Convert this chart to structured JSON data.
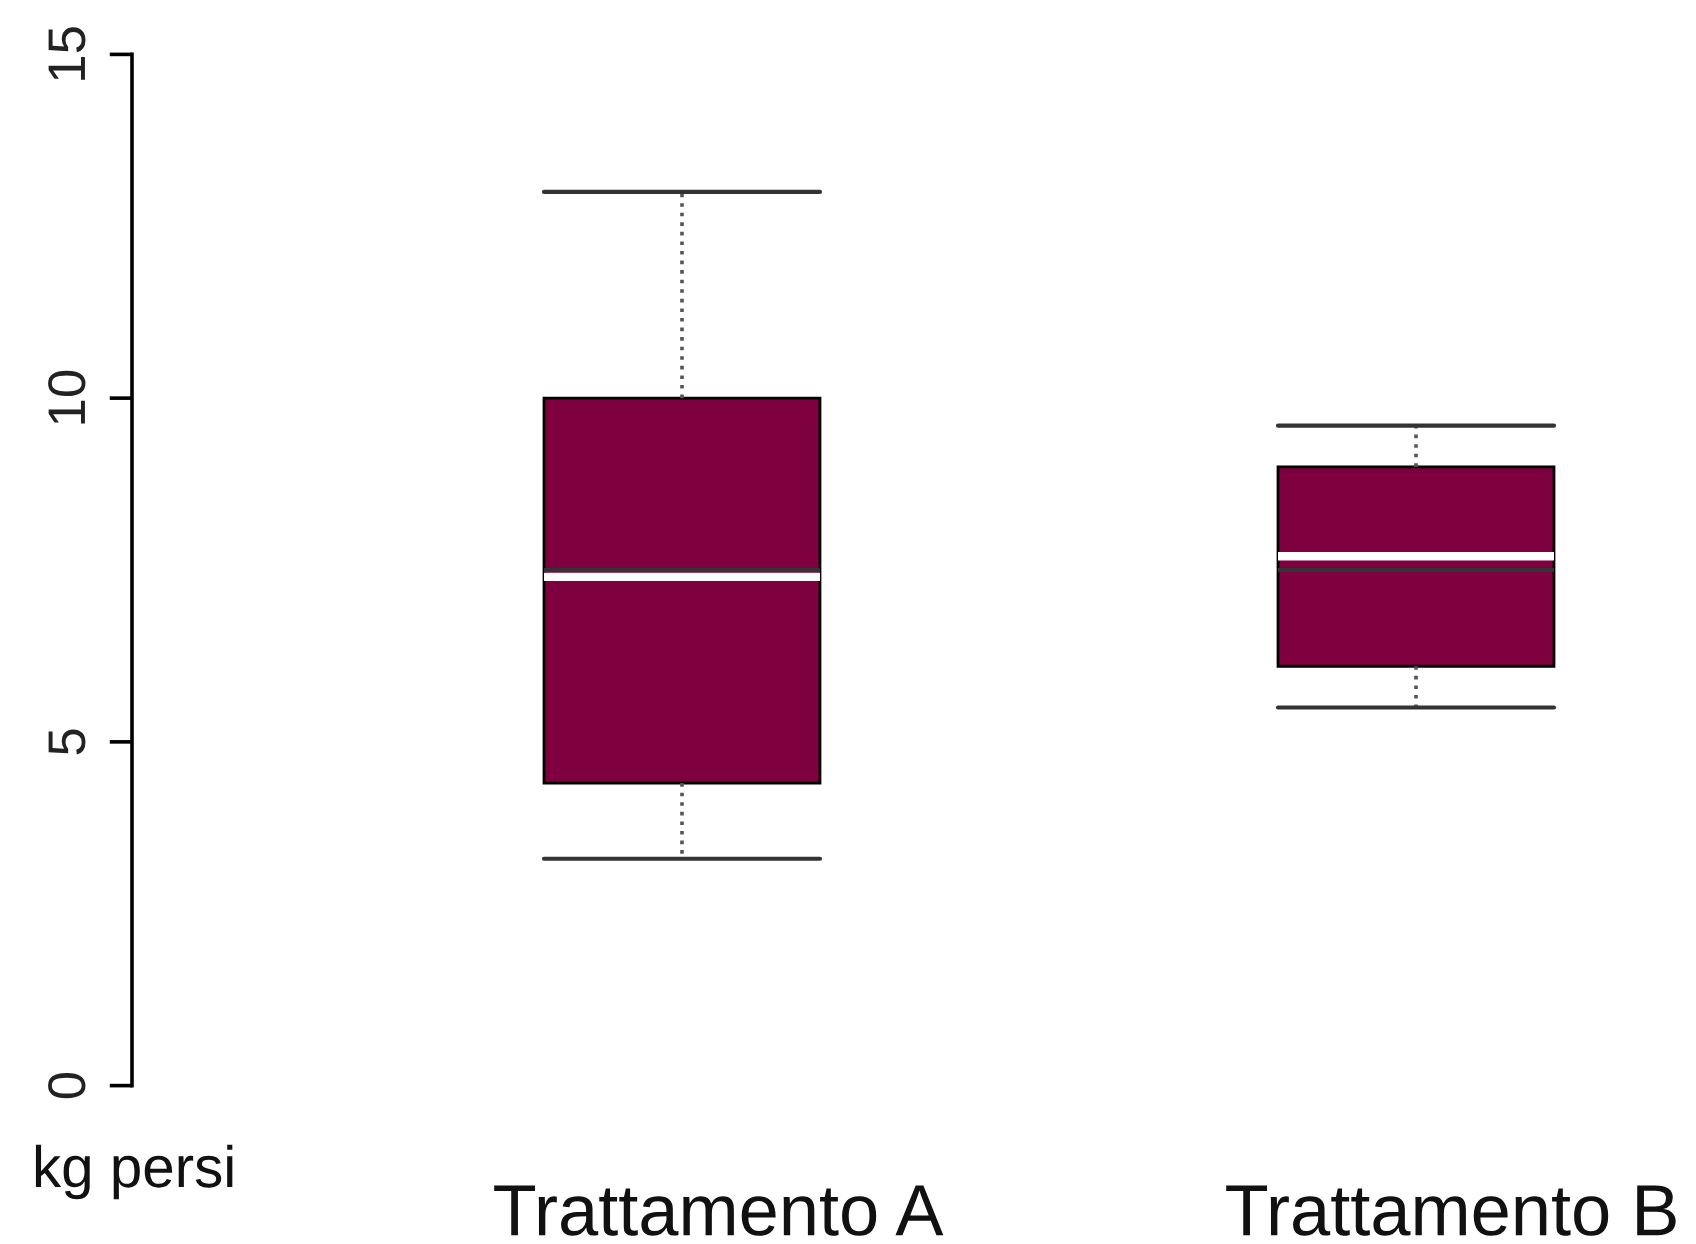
{
  "chart_data": {
    "type": "box",
    "ylabel": "kg persi",
    "categories": [
      "Trattamento A",
      "Trattamento B"
    ],
    "boxes": [
      {
        "low": 3.3,
        "q1": 4.4,
        "median": 7.4,
        "q3": 10,
        "high": 13,
        "mean": 7.5
      },
      {
        "low": 5.5,
        "q1": 6.1,
        "median": 7.7,
        "q3": 9,
        "high": 9.6,
        "mean": 7.5
      }
    ],
    "color": "#7f003f",
    "ylim": [
      0,
      15
    ],
    "yticks": [
      0,
      5,
      10,
      15
    ]
  }
}
